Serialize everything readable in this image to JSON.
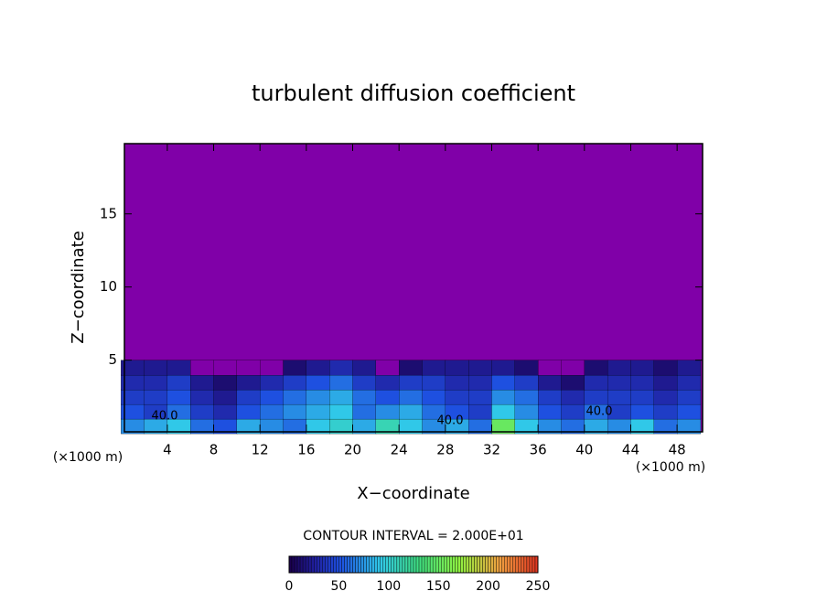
{
  "chart_data": {
    "type": "contour",
    "title": "turbulent diffusion coefficient",
    "xlabel": "X−coordinate",
    "ylabel": "Z−coordinate",
    "x_unit": "(×1000 m)",
    "y_unit": "(×1000 m)",
    "xlim": [
      0.3,
      50.2
    ],
    "ylim": [
      0.1,
      19.8
    ],
    "xticks": [
      4,
      8,
      12,
      16,
      20,
      24,
      28,
      32,
      36,
      40,
      44,
      48
    ],
    "yticks": [
      5,
      10,
      15
    ],
    "background_color": "#8000a8",
    "field": {
      "x_edges": [
        0,
        2,
        4,
        6,
        8,
        10,
        12,
        14,
        16,
        18,
        20,
        22,
        24,
        26,
        28,
        30,
        32,
        34,
        36,
        38,
        40,
        42,
        44,
        46,
        48,
        50
      ],
      "z_edges": [
        0,
        1,
        2,
        3,
        4,
        5
      ],
      "rows": [
        [
          70,
          80,
          90,
          60,
          50,
          80,
          70,
          60,
          90,
          100,
          80,
          110,
          90,
          70,
          80,
          60,
          150,
          90,
          70,
          60,
          80,
          70,
          90,
          60,
          70
        ],
        [
          50,
          40,
          60,
          40,
          30,
          50,
          60,
          70,
          80,
          90,
          60,
          70,
          80,
          60,
          50,
          40,
          90,
          70,
          50,
          40,
          60,
          40,
          50,
          40,
          50
        ],
        [
          40,
          40,
          50,
          30,
          20,
          40,
          50,
          60,
          70,
          80,
          60,
          50,
          60,
          50,
          40,
          40,
          70,
          60,
          40,
          30,
          40,
          40,
          40,
          30,
          40
        ],
        [
          30,
          30,
          40,
          20,
          10,
          20,
          30,
          40,
          50,
          60,
          40,
          30,
          40,
          40,
          30,
          30,
          50,
          40,
          20,
          10,
          30,
          30,
          30,
          20,
          30
        ],
        [
          20,
          20,
          20,
          0,
          0,
          0,
          0,
          10,
          20,
          30,
          20,
          0,
          10,
          20,
          20,
          20,
          20,
          10,
          0,
          0,
          10,
          20,
          20,
          10,
          20
        ]
      ]
    },
    "contour_labels": [
      "40.0",
      "40.0",
      "40.0"
    ],
    "contour_interval": "CONTOUR INTERVAL = 2.000E+01",
    "colorbar": {
      "lim": [
        0,
        250
      ],
      "ticks": [
        0,
        50,
        100,
        150,
        200,
        250
      ]
    },
    "colorscale": [
      [
        0,
        "#1a0050"
      ],
      [
        25,
        "#2020a0"
      ],
      [
        50,
        "#1e50e0"
      ],
      [
        90,
        "#30c8e8"
      ],
      [
        130,
        "#40e080"
      ],
      [
        170,
        "#90f040"
      ],
      [
        210,
        "#f0a040"
      ],
      [
        250,
        "#e03020"
      ]
    ]
  }
}
